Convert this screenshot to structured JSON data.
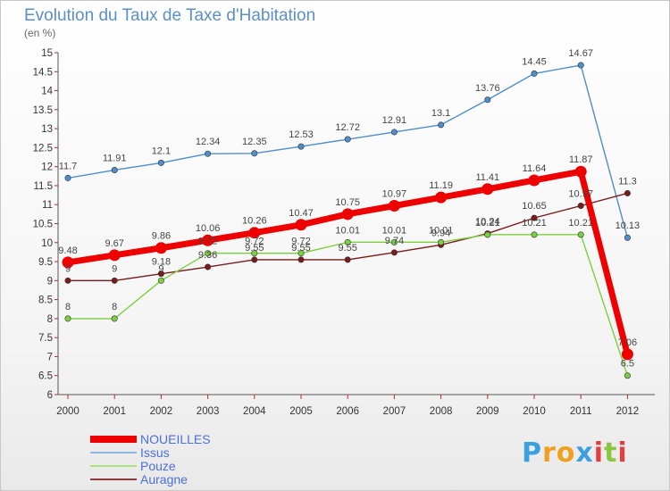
{
  "title": "Evolution du Taux de Taxe d'Habitation",
  "subtitle": "(en %)",
  "chart_data": {
    "type": "line",
    "x": [
      "2000",
      "2001",
      "2002",
      "2003",
      "2004",
      "2005",
      "2006",
      "2007",
      "2008",
      "2009",
      "2010",
      "2011",
      "2012"
    ],
    "ylim": [
      6,
      15
    ],
    "yticks": [
      "6",
      "6.5",
      "7",
      "7.5",
      "8",
      "8.5",
      "9",
      "9.5",
      "10",
      "10.5",
      "11",
      "11.5",
      "12",
      "12.5",
      "13",
      "13.5",
      "14",
      "14.5",
      "15"
    ],
    "grid": false,
    "legend_position": "bottom-left",
    "series": [
      {
        "name": "NOUEILLES",
        "color": "#ee0000",
        "values": [
          9.48,
          9.67,
          9.86,
          10.06,
          10.26,
          10.47,
          10.75,
          10.97,
          11.19,
          11.41,
          11.64,
          11.87,
          7.06
        ],
        "labels": [
          "9.48",
          "9.67",
          "9.86",
          "10.06",
          "10.26",
          "10.47",
          "10.75",
          "10.97",
          "11.19",
          "11.41",
          "11.64",
          "11.87",
          "7.06"
        ]
      },
      {
        "name": "Issus",
        "color": "#4f8ec9",
        "values": [
          11.7,
          11.91,
          12.1,
          12.34,
          12.35,
          12.53,
          12.72,
          12.91,
          13.1,
          13.76,
          14.45,
          14.67,
          10.13
        ],
        "labels": [
          "11.7",
          "11.91",
          "12.1",
          "12.34",
          "12.35",
          "12.53",
          "12.72",
          "12.91",
          "13.1",
          "13.76",
          "14.45",
          "14.67",
          "10.13"
        ]
      },
      {
        "name": "Pouze",
        "color": "#7ccf3f",
        "values": [
          8,
          8,
          9,
          9.72,
          9.72,
          9.72,
          10.01,
          10.01,
          10.01,
          10.21,
          10.21,
          10.21,
          6.5
        ],
        "labels": [
          "8",
          "8",
          "9",
          "9.72",
          "9.72",
          "9.72",
          "10.01",
          "10.01",
          "10.01",
          "10.21",
          "10.21",
          "10.21",
          "6.5"
        ]
      },
      {
        "name": "Auragne",
        "color": "#7a1a1a",
        "values": [
          9,
          9,
          9.18,
          9.36,
          9.55,
          9.55,
          9.55,
          9.74,
          9.94,
          10.24,
          10.65,
          10.97,
          11.3
        ],
        "labels": [
          "9",
          "9",
          "9.18",
          "9.36",
          "9.55",
          "9.55",
          "9.55",
          "9.74",
          "9.94",
          "10.24",
          "10.65",
          "10.97",
          "11.3"
        ]
      }
    ]
  },
  "legend": {
    "items": [
      {
        "label": "NOUEILLES",
        "color": "#ee0000",
        "text_color": "#4a6fe0"
      },
      {
        "label": "Issus",
        "color": "#8eb8e0",
        "text_color": "#4a6fe0"
      },
      {
        "label": "Pouze",
        "color": "#a8e07a",
        "text_color": "#4a6fe0"
      },
      {
        "label": "Auragne",
        "color": "#8a3a3a",
        "text_color": "#4a6fe0"
      }
    ]
  },
  "logo": {
    "text": "Proxiti",
    "letters": [
      "P",
      "r",
      "o",
      "x",
      "i",
      "t",
      "i"
    ],
    "colors": [
      "#3aa0e0",
      "#f0a020",
      "#f0a020",
      "#3aa0e0",
      "#e04040",
      "#8cc63f",
      "#e04040"
    ]
  }
}
